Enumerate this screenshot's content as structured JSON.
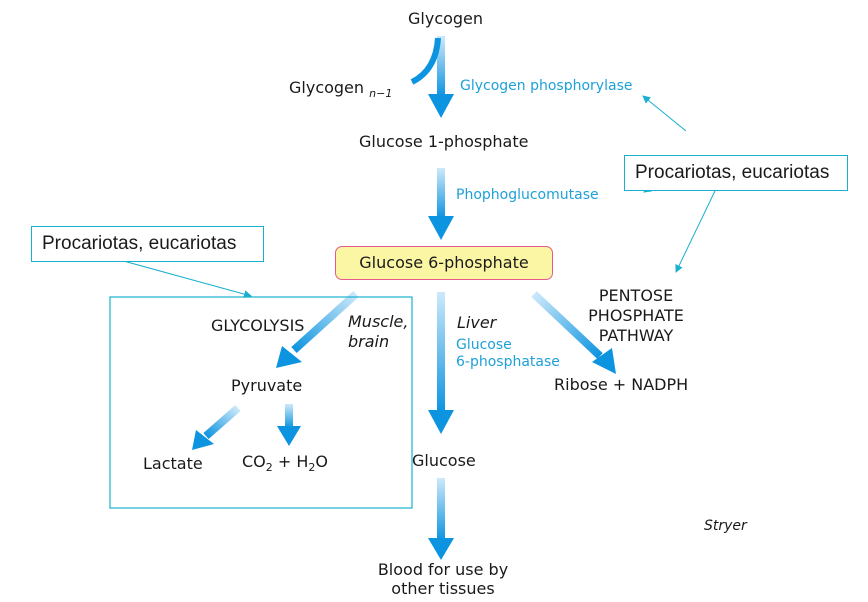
{
  "nodes": {
    "glycogen": "Glycogen",
    "glycogen_n1": "Glycogen",
    "glycogen_n1_sub": "n−1",
    "glucose_1p": "Glucose 1-phosphate",
    "glucose_6p": "Glucose 6-phosphate",
    "glycolysis": "GLYCOLYSIS",
    "pyruvate": "Pyruvate",
    "lactate": "Lactate",
    "co2": "CO",
    "co2_sub": "2",
    "plus_h2": "+ H",
    "h2_sub": "2",
    "oxygen": "O",
    "glucose": "Glucose",
    "ribose": "Ribose + NADPH",
    "pentose_1": "PENTOSE",
    "pentose_2": "PHOSPHATE",
    "pentose_3": "PATHWAY",
    "blood_1": "Blood for use by",
    "blood_2": "other tissues"
  },
  "enzymes": {
    "glycogen_phosphorylase": "Glycogen phosphorylase",
    "phosphoglucomutase": "Phophoglucomutase",
    "g6pase_1": "Glucose",
    "g6pase_2": "6-phosphatase"
  },
  "tissues": {
    "muscle_1": "Muscle,",
    "muscle_2": "brain",
    "liver": "Liver"
  },
  "callouts": {
    "right": "Procariotas, eucariotas",
    "left": "Procariotas, eucariotas"
  },
  "credit": "Stryer",
  "side_caption": "",
  "colors": {
    "arrow": "#0d94e0",
    "enzyme_text": "#1ea0d8",
    "callout_border": "#19b0cf",
    "highlight_fill": "#fbf6a4",
    "highlight_border": "#e45a8c"
  }
}
